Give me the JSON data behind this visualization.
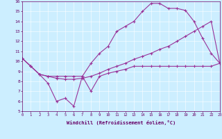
{
  "xlabel": "Windchill (Refroidissement éolien,°C)",
  "xlim": [
    0,
    23
  ],
  "ylim": [
    5,
    16
  ],
  "xticks": [
    0,
    1,
    2,
    3,
    4,
    5,
    6,
    7,
    8,
    9,
    10,
    11,
    12,
    13,
    14,
    15,
    16,
    17,
    18,
    19,
    20,
    21,
    22,
    23
  ],
  "yticks": [
    5,
    6,
    7,
    8,
    9,
    10,
    11,
    12,
    13,
    14,
    15,
    16
  ],
  "bg_color": "#cceeff",
  "line_color": "#993399",
  "series_top": [
    10.3,
    9.5,
    8.7,
    8.5,
    8.5,
    8.5,
    8.5,
    8.5,
    9.8,
    10.8,
    11.5,
    13.0,
    13.5,
    14.0,
    15.0,
    15.8,
    15.8,
    15.3,
    15.3,
    15.1,
    14.0,
    12.3,
    10.8,
    9.8
  ],
  "series_middle": [
    10.3,
    9.5,
    8.7,
    8.5,
    8.3,
    8.2,
    8.2,
    8.3,
    8.5,
    8.8,
    9.2,
    9.5,
    9.8,
    10.2,
    10.5,
    10.8,
    11.2,
    11.5,
    12.0,
    12.5,
    13.0,
    13.5,
    14.0,
    9.8
  ],
  "series_bottom": [
    10.3,
    9.5,
    8.7,
    7.8,
    6.0,
    6.3,
    5.5,
    8.5,
    7.0,
    8.5,
    8.8,
    9.0,
    9.2,
    9.5,
    9.5,
    9.5,
    9.5,
    9.5,
    9.5,
    9.5,
    9.5,
    9.5,
    9.5,
    9.8
  ],
  "figsize": [
    3.2,
    2.0
  ],
  "dpi": 100
}
